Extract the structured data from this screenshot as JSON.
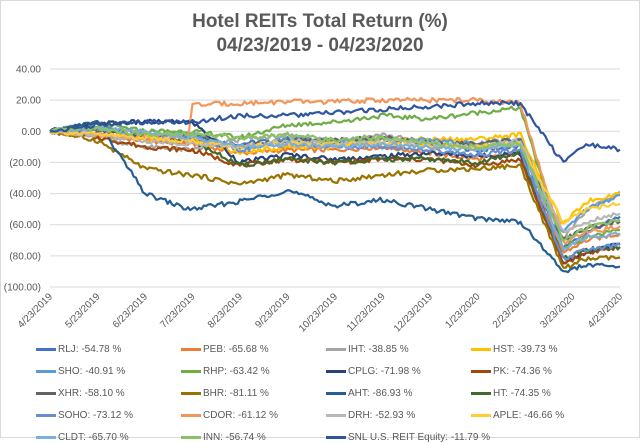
{
  "chart_data": {
    "type": "line",
    "title": "Hotel REITs Total Return (%)",
    "subtitle": "04/23/2019 - 04/23/2020",
    "xlabel": "",
    "ylabel": "",
    "ylim": [
      -100,
      40
    ],
    "y_ticks": [
      40,
      20,
      0,
      -20,
      -40,
      -60,
      -80,
      -100
    ],
    "y_tick_labels": [
      "40.00",
      "20.00",
      "0.00",
      "(20.00)",
      "(40.00)",
      "(60.00)",
      "(80.00)",
      "(100.00)"
    ],
    "x_tick_labels": [
      "4/23/2019",
      "5/23/2019",
      "6/23/2019",
      "7/23/2019",
      "8/23/2019",
      "9/23/2019",
      "10/23/2019",
      "11/23/2019",
      "12/23/2019",
      "1/23/2020",
      "2/23/2020",
      "3/23/2020",
      "4/23/2020"
    ],
    "x_unit": "months since 4/23/2019",
    "x": [
      0,
      1,
      2,
      2.9,
      3,
      4,
      5,
      6,
      7,
      8,
      9,
      9.9,
      10.8,
      11.3,
      12
    ],
    "grid": "horizontal",
    "legend_position": "bottom",
    "series": [
      {
        "name": "RLJ",
        "legend": "RLJ: -54.78 %",
        "color": "#4472C4",
        "values": [
          0,
          -2,
          -5,
          -6,
          -6,
          -8,
          -5,
          -8,
          -6,
          -8,
          -12,
          -10,
          -75,
          -65,
          -54.78
        ]
      },
      {
        "name": "PEB",
        "legend": "PEB: -65.68 %",
        "color": "#ED7D31",
        "values": [
          0,
          -3,
          -6,
          -8,
          -8,
          -14,
          -12,
          -12,
          -10,
          -14,
          -18,
          -14,
          -78,
          -70,
          -65.68
        ]
      },
      {
        "name": "IHT",
        "legend": "IHT: -38.85 %",
        "color": "#A5A5A5",
        "values": [
          0,
          -4,
          -10,
          -12,
          -12,
          -5,
          -3,
          -6,
          -2,
          -8,
          -10,
          -8,
          -70,
          -50,
          -38.85
        ]
      },
      {
        "name": "HST",
        "legend": "HST: -39.73 %",
        "color": "#FFC000",
        "values": [
          0,
          -2,
          -5,
          -6,
          -6,
          -14,
          -10,
          -10,
          -6,
          -5,
          -5,
          -2,
          -60,
          -45,
          -39.73
        ]
      },
      {
        "name": "SHO",
        "legend": "SHO: -40.91 %",
        "color": "#5B9BD5",
        "values": [
          0,
          2,
          0,
          -2,
          -2,
          -10,
          -5,
          -6,
          -5,
          -6,
          -8,
          -5,
          -65,
          -50,
          -40.91
        ]
      },
      {
        "name": "RHP",
        "legend": "RHP: -63.42 %",
        "color": "#70AD47",
        "values": [
          0,
          5,
          0,
          0,
          0,
          -4,
          4,
          6,
          10,
          8,
          12,
          15,
          -75,
          -68,
          -63.42
        ]
      },
      {
        "name": "CPLG",
        "legend": "CPLG: -71.98 %",
        "color": "#264478",
        "values": [
          0,
          5,
          6,
          6,
          6,
          -20,
          -15,
          -18,
          -16,
          -14,
          -16,
          -14,
          -85,
          -78,
          -71.98
        ]
      },
      {
        "name": "PK",
        "legend": "PK: -74.36 %",
        "color": "#9E480E",
        "values": [
          0,
          -4,
          -10,
          -12,
          -12,
          -22,
          -18,
          -20,
          -18,
          -18,
          -22,
          -18,
          -85,
          -78,
          -74.36
        ]
      },
      {
        "name": "XHR",
        "legend": "XHR: -58.10 %",
        "color": "#636363",
        "values": [
          0,
          0,
          -4,
          -3,
          -3,
          -10,
          -6,
          -6,
          -4,
          -8,
          -8,
          -5,
          -70,
          -62,
          -58.1
        ]
      },
      {
        "name": "BHR",
        "legend": "BHR: -81.11 %",
        "color": "#997300",
        "values": [
          0,
          -6,
          -24,
          -28,
          -28,
          -34,
          -28,
          -32,
          -28,
          -25,
          -24,
          -22,
          -88,
          -82,
          -81.11
        ]
      },
      {
        "name": "AHT",
        "legend": "AHT: -86.93 %",
        "color": "#255E91",
        "values": [
          0,
          6,
          -40,
          -50,
          -50,
          -45,
          -38,
          -48,
          -44,
          -50,
          -56,
          -58,
          -90,
          -86,
          -86.93
        ]
      },
      {
        "name": "HT",
        "legend": "HT: -74.35 %",
        "color": "#43682B",
        "values": [
          0,
          2,
          -4,
          -6,
          -6,
          -22,
          -18,
          -20,
          -18,
          -18,
          -20,
          -14,
          -82,
          -76,
          -74.35
        ]
      },
      {
        "name": "SOHO",
        "legend": "SOHO: -73.12 %",
        "color": "#698ED0",
        "values": [
          0,
          2,
          -2,
          -4,
          -4,
          -12,
          -8,
          -10,
          -10,
          -12,
          -15,
          -12,
          -82,
          -76,
          -73.12
        ]
      },
      {
        "name": "CDOR",
        "legend": "CDOR: -61.12 %",
        "color": "#F1975A",
        "values": [
          0,
          -2,
          -4,
          -5,
          17,
          18,
          19,
          19,
          20,
          20,
          20,
          18,
          -72,
          -65,
          -61.12
        ]
      },
      {
        "name": "DRH",
        "legend": "DRH: -52.93 %",
        "color": "#B7B7B7",
        "values": [
          0,
          -2,
          -6,
          -8,
          -8,
          -10,
          -6,
          -8,
          -6,
          -8,
          -10,
          -6,
          -65,
          -58,
          -52.93
        ]
      },
      {
        "name": "APLE",
        "legend": "APLE: -46.66 %",
        "color": "#FFCD33",
        "values": [
          0,
          -2,
          -4,
          -6,
          -6,
          -10,
          -8,
          -8,
          -8,
          -10,
          -10,
          -8,
          -58,
          -50,
          -46.66
        ]
      },
      {
        "name": "CLDT",
        "legend": "CLDT: -65.70 %",
        "color": "#7CAFDD",
        "values": [
          0,
          2,
          0,
          -4,
          -4,
          -10,
          -8,
          -10,
          -8,
          -10,
          -12,
          -8,
          -75,
          -68,
          -65.7
        ]
      },
      {
        "name": "INN",
        "legend": "INN: -56.74 %",
        "color": "#8CC168",
        "values": [
          0,
          2,
          -2,
          -2,
          -2,
          -4,
          -2,
          -6,
          -4,
          -8,
          -10,
          -8,
          -70,
          -62,
          -56.74
        ]
      },
      {
        "name": "SNL U.S. REIT Equity",
        "legend": "SNL U.S. REIT Equity: -11.79 %",
        "color": "#2F55A0",
        "values": [
          0,
          4,
          6,
          6,
          6,
          10,
          10,
          12,
          14,
          16,
          18,
          18,
          -20,
          -8,
          -11.79
        ]
      }
    ]
  }
}
